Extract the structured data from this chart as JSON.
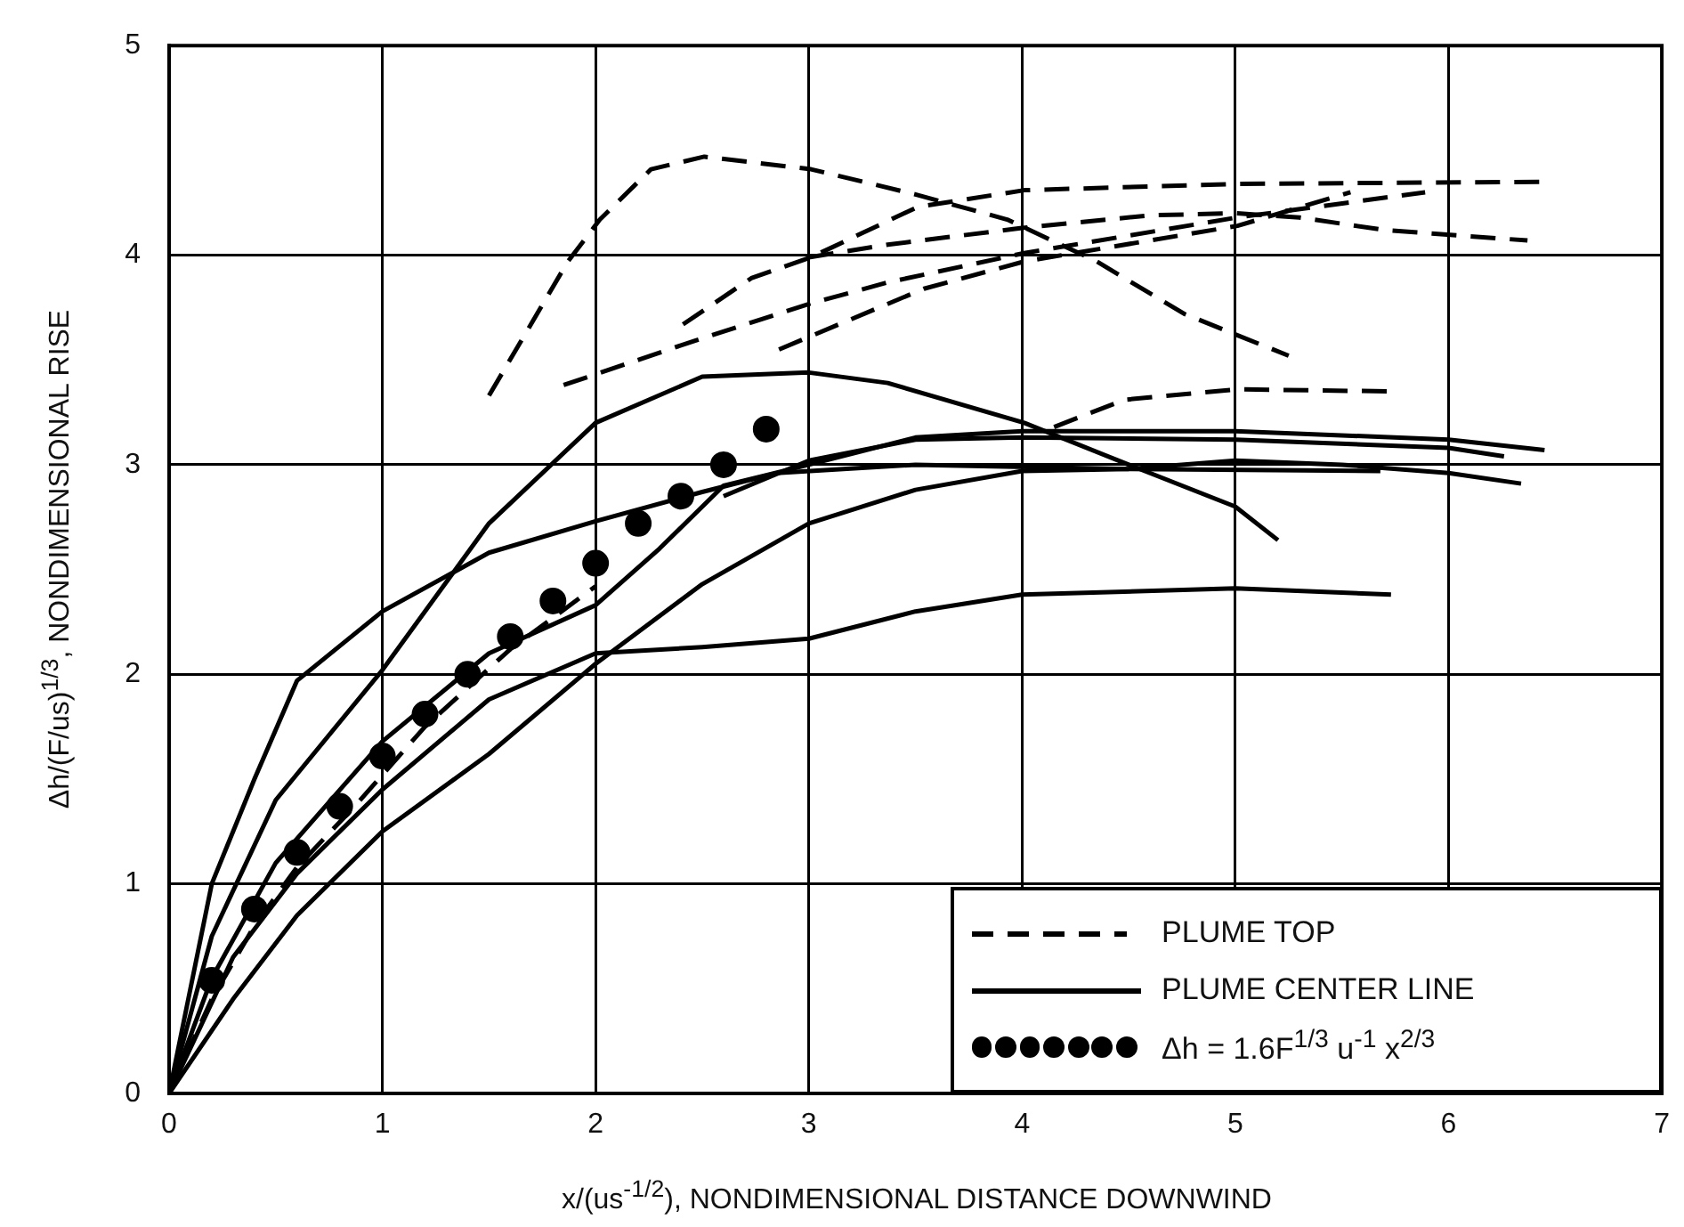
{
  "chart_data": {
    "type": "line",
    "xlabel": "x/(us$^{-1/2}$), NONDIMENSIONAL DISTANCE DOWNWIND",
    "ylabel": "Δh/(F/us)$^{1/3}$, NONDIMENSIONAL RISE",
    "xlim": [
      0,
      7
    ],
    "xticks": [
      0,
      1,
      2,
      3,
      4,
      5,
      6,
      7
    ],
    "ylim": [
      0,
      5
    ],
    "yticks": [
      0,
      1,
      2,
      3,
      4,
      5
    ],
    "grid": true,
    "legend": "bottom right",
    "series": [
      {
        "name": "PLUME TOP",
        "color": "#000000",
        "line_style": "dashed",
        "marker": "none",
        "x": [
          1.5,
          1.87,
          2.02,
          2.26,
          2.51,
          3.01,
          3.5,
          3.93,
          4.35,
          4.76,
          5.25
        ],
        "values": [
          3.33,
          3.97,
          4.17,
          4.41,
          4.47,
          4.41,
          4.29,
          4.17,
          3.97,
          3.72,
          3.52
        ]
      },
      {
        "name": "PLUME CENTER LINE",
        "color": "#000000",
        "line_style": "solid",
        "marker": "none",
        "x": [
          0,
          0.2,
          0.4,
          0.6,
          1,
          1.5,
          2,
          2.5,
          2.85,
          3.5,
          4.5,
          5.68
        ],
        "values": [
          0,
          1,
          1.5,
          1.97,
          2.3,
          2.58,
          2.73,
          2.87,
          2.96,
          3,
          2.98,
          2.97
        ]
      },
      {
        "name": "Δh = 1.6F$^{1/3}$ u$^{-1}$ x$^{2/3}$",
        "type": "scatter",
        "marker": "circle",
        "color": "#000000",
        "x": [
          0.2,
          0.4,
          0.6,
          0.8,
          1,
          1.2,
          1.4,
          1.6,
          1.8,
          2,
          2.2,
          2.4,
          2.6,
          2.8
        ],
        "values": [
          0.54,
          0.88,
          1.15,
          1.37,
          1.61,
          1.81,
          2,
          2.18,
          2.35,
          2.53,
          2.72,
          2.85,
          3,
          3.17
        ]
      },
      {
        "color": "#000000",
        "line_style": "dashed",
        "marker": "none",
        "x": [
          2.41,
          2.73,
          3.01,
          3.51,
          4.01,
          5.01,
          6.43
        ],
        "values": [
          3.67,
          3.89,
          3.99,
          4.23,
          4.31,
          4.34,
          4.35
        ]
      },
      {
        "color": "#000000",
        "line_style": "dashed",
        "marker": "none",
        "x": [
          1.85,
          2.46,
          3.01,
          3.37,
          4.01,
          5.01,
          5.89
        ],
        "values": [
          3.38,
          3.59,
          3.77,
          3.87,
          4.01,
          4.18,
          4.3
        ]
      },
      {
        "color": "#000000",
        "line_style": "dashed",
        "marker": "none",
        "x": [
          2.86,
          3.54,
          4.01,
          5.01,
          5.54
        ],
        "values": [
          3.55,
          3.84,
          3.97,
          4.14,
          4.3
        ]
      },
      {
        "color": "#000000",
        "line_style": "dashed",
        "marker": "none",
        "x": [
          3.0,
          3.37,
          4.0,
          4.6,
          5.0,
          5.3,
          5.7,
          6.37
        ],
        "values": [
          3.99,
          4.05,
          4.13,
          4.19,
          4.2,
          4.18,
          4.12,
          4.07
        ]
      },
      {
        "color": "#000000",
        "line_style": "dashed",
        "marker": "none",
        "x": [
          4.15,
          4.48,
          5.01,
          5.73
        ],
        "values": [
          3.18,
          3.31,
          3.36,
          3.35
        ]
      },
      {
        "color": "#000000",
        "line_style": "dashed",
        "marker": "none",
        "x": [
          0,
          0.2,
          0.4,
          0.6,
          0.87,
          1.2,
          1.6,
          2
        ],
        "values": [
          0,
          0.45,
          0.8,
          1.08,
          1.37,
          1.75,
          2.12,
          2.42
        ]
      },
      {
        "color": "#000000",
        "line_style": "solid",
        "marker": "none",
        "x": [
          0,
          0.2,
          0.5,
          1,
          1.5,
          2,
          2.5,
          3,
          3.37,
          4.01,
          4.5,
          5,
          5.2
        ],
        "values": [
          0,
          0.75,
          1.4,
          2.02,
          2.72,
          3.2,
          3.42,
          3.44,
          3.39,
          3.2,
          3,
          2.8,
          2.64
        ]
      },
      {
        "color": "#000000",
        "line_style": "solid",
        "marker": "none",
        "x": [
          0,
          0.2,
          0.5,
          1,
          1.5,
          2,
          2.3,
          2.6,
          3,
          3.5,
          4,
          5,
          6,
          6.45
        ],
        "values": [
          0,
          0.55,
          1.1,
          1.68,
          2.1,
          2.33,
          2.6,
          2.9,
          3,
          3.13,
          3.16,
          3.16,
          3.12,
          3.07
        ]
      },
      {
        "color": "#000000",
        "line_style": "solid",
        "marker": "none",
        "x": [
          2.6,
          3,
          3.5,
          4,
          5,
          6,
          6.26
        ],
        "values": [
          2.85,
          3.02,
          3.12,
          3.13,
          3.12,
          3.08,
          3.04
        ]
      },
      {
        "color": "#000000",
        "line_style": "solid",
        "marker": "none",
        "x": [
          0,
          0.3,
          0.6,
          1,
          1.5,
          2,
          2.5,
          3,
          3.5,
          4,
          5,
          5.73
        ],
        "values": [
          0,
          0.65,
          1.05,
          1.45,
          1.88,
          2.1,
          2.13,
          2.17,
          2.3,
          2.38,
          2.41,
          2.38
        ]
      },
      {
        "color": "#000000",
        "line_style": "solid",
        "marker": "none",
        "x": [
          0,
          0.3,
          0.6,
          1,
          1.5,
          2,
          2.5,
          3,
          3.5,
          4,
          4.5,
          5,
          5.5,
          6,
          6.34
        ],
        "values": [
          0,
          0.45,
          0.85,
          1.25,
          1.62,
          2.05,
          2.43,
          2.72,
          2.88,
          2.97,
          2.98,
          3.02,
          3,
          2.96,
          2.91
        ]
      }
    ]
  }
}
